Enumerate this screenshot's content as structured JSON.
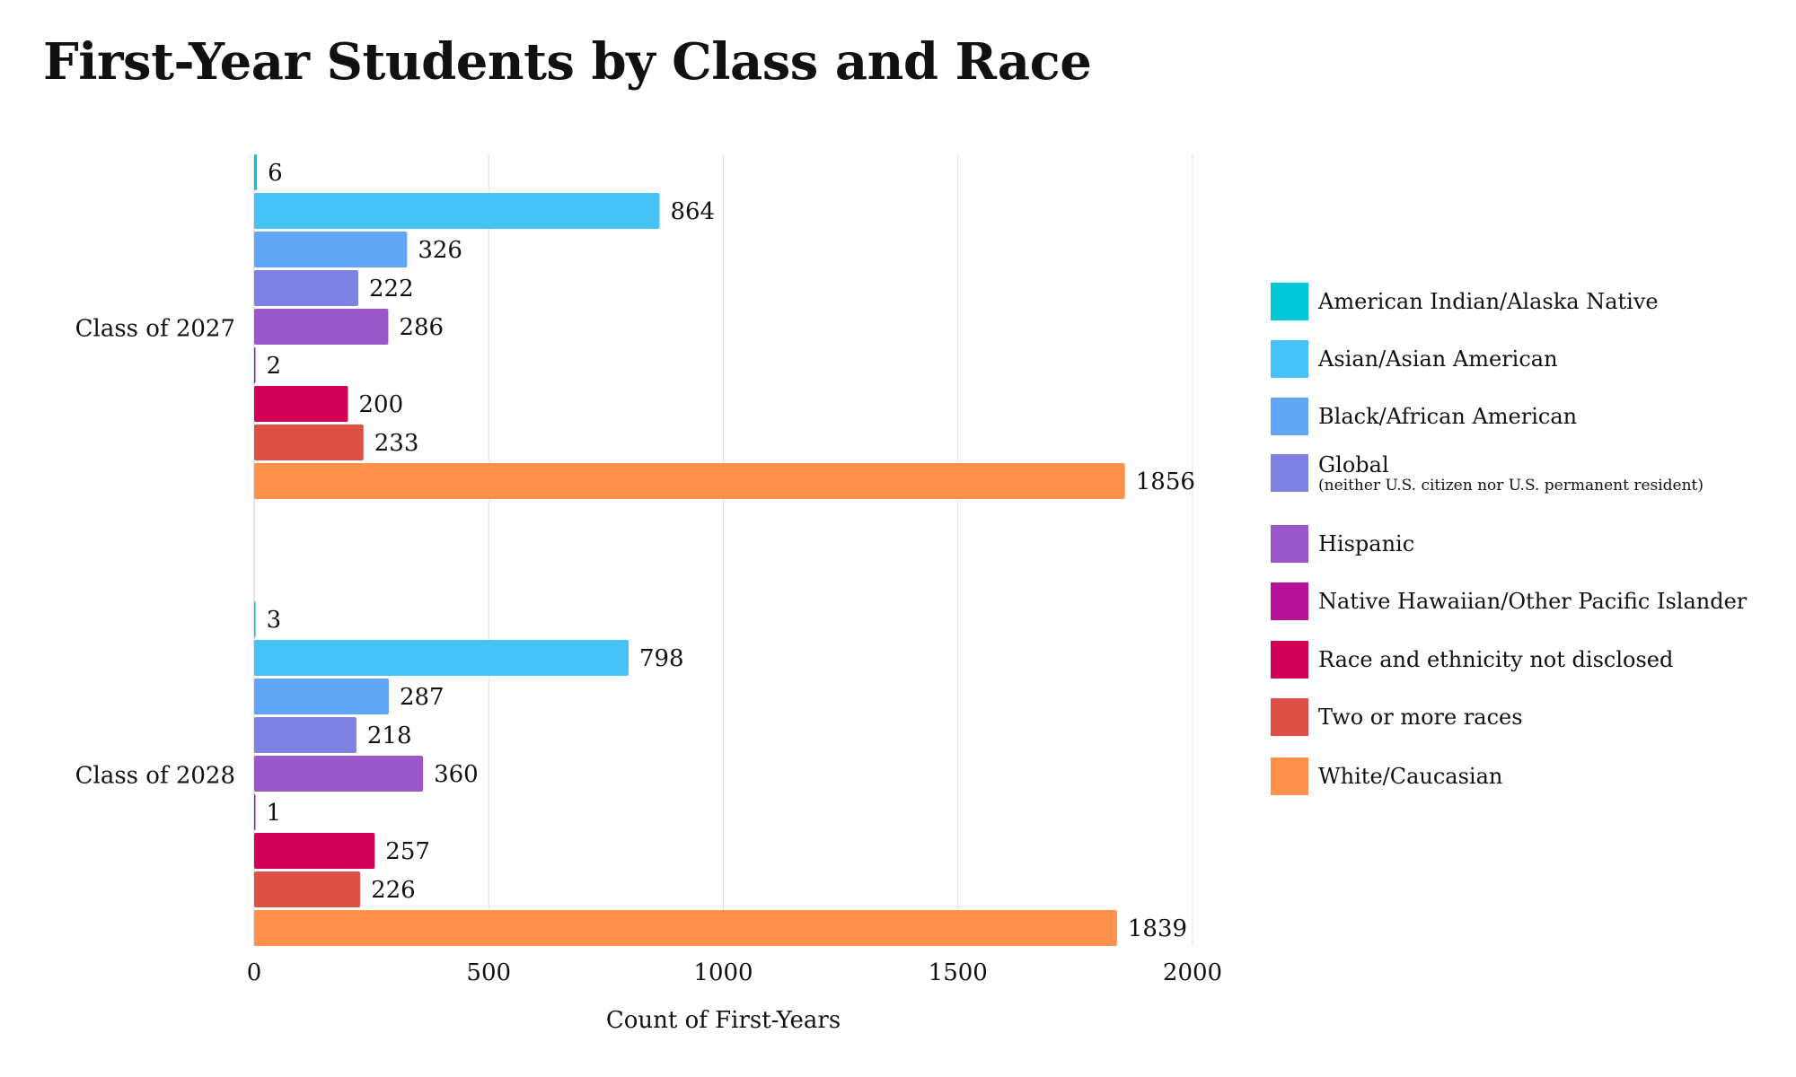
{
  "chart_data": {
    "type": "bar",
    "orientation": "horizontal",
    "title": "First-Year Students by Class and Race",
    "xlabel": "Count of First-Years",
    "ylabel": "",
    "xlim": [
      0,
      2000
    ],
    "xticks": [
      "0",
      "500",
      "1000",
      "1500",
      "2000"
    ],
    "grid": true,
    "legend_position": "right",
    "categories": [
      "Class of 2027",
      "Class of 2028"
    ],
    "series": [
      {
        "name": "American Indian/Alaska Native",
        "color": "#00C8D7",
        "values": [
          6,
          3
        ]
      },
      {
        "name": "Asian/Asian American",
        "color": "#45C2F7",
        "values": [
          864,
          798
        ]
      },
      {
        "name": "Black/African American",
        "color": "#62A6F7",
        "values": [
          326,
          287
        ]
      },
      {
        "name": "Global",
        "subtitle": "(neither U.S. citizen nor U.S. permanent resident)",
        "color": "#7E80E2",
        "values": [
          222,
          218
        ]
      },
      {
        "name": "Hispanic",
        "color": "#9957CA",
        "values": [
          286,
          360
        ]
      },
      {
        "name": "Native Hawaiian/Other Pacific Islander",
        "color": "#B8129A",
        "values": [
          2,
          1
        ]
      },
      {
        "name": "Race and ethnicity not disclosed",
        "color": "#D10057",
        "values": [
          200,
          257
        ]
      },
      {
        "name": "Two or more races",
        "color": "#DE5045",
        "values": [
          233,
          226
        ]
      },
      {
        "name": "White/Caucasian",
        "color": "#FF914B",
        "values": [
          1856,
          1839
        ]
      }
    ]
  }
}
